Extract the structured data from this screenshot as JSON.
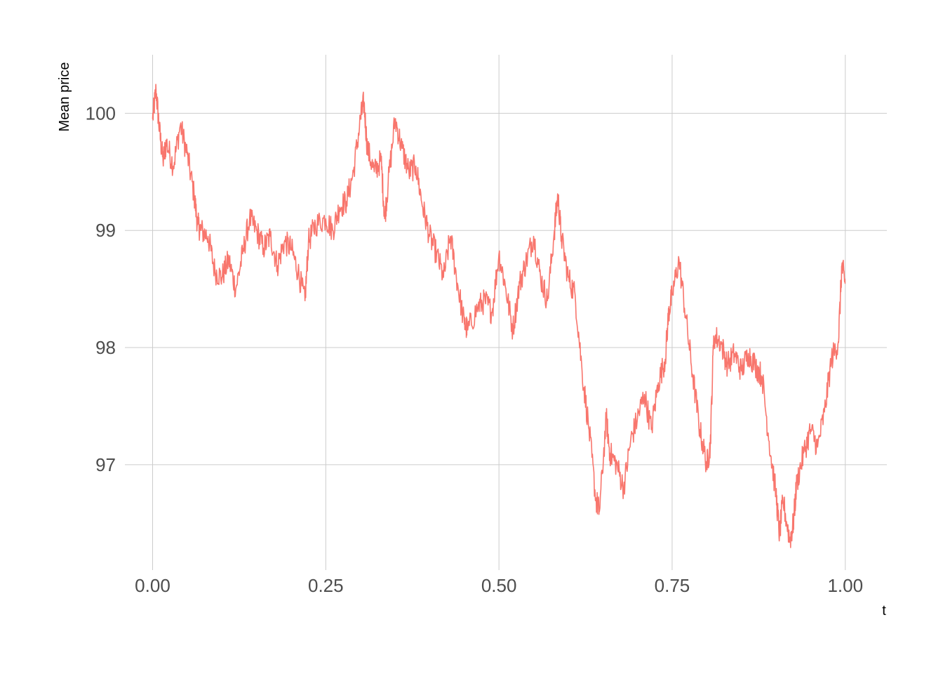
{
  "chart_data": {
    "type": "line",
    "xlabel": "t",
    "ylabel": "Mean price",
    "xlim": [
      -0.04,
      1.06
    ],
    "ylim": [
      96.1,
      100.5
    ],
    "x_ticks": [
      0.0,
      0.25,
      0.5,
      0.75,
      1.0
    ],
    "x_tick_labels": [
      "0.00",
      "0.25",
      "0.50",
      "0.75",
      "1.00"
    ],
    "y_ticks": [
      97,
      98,
      99,
      100
    ],
    "y_tick_labels": [
      "97",
      "98",
      "99",
      "100"
    ],
    "grid": true,
    "legend": "none",
    "colors": {
      "line": "#f8766d",
      "grid": "#cccccc",
      "tick_text": "#4d4d4d"
    },
    "series": [
      {
        "x": [
          0.0,
          0.005,
          0.01,
          0.015,
          0.02,
          0.03,
          0.04,
          0.05,
          0.06,
          0.065,
          0.07,
          0.08,
          0.09,
          0.1,
          0.11,
          0.12,
          0.13,
          0.14,
          0.15,
          0.16,
          0.17,
          0.18,
          0.19,
          0.2,
          0.21,
          0.22,
          0.225,
          0.235,
          0.25,
          0.26,
          0.27,
          0.28,
          0.29,
          0.3,
          0.305,
          0.31,
          0.32,
          0.33,
          0.335,
          0.34,
          0.35,
          0.36,
          0.37,
          0.38,
          0.39,
          0.4,
          0.41,
          0.42,
          0.43,
          0.44,
          0.45,
          0.455,
          0.47,
          0.48,
          0.49,
          0.5,
          0.51,
          0.52,
          0.53,
          0.54,
          0.55,
          0.56,
          0.57,
          0.58,
          0.585,
          0.59,
          0.6,
          0.61,
          0.62,
          0.63,
          0.64,
          0.645,
          0.655,
          0.66,
          0.67,
          0.68,
          0.69,
          0.7,
          0.71,
          0.72,
          0.73,
          0.74,
          0.745,
          0.75,
          0.76,
          0.77,
          0.78,
          0.79,
          0.8,
          0.805,
          0.81,
          0.82,
          0.83,
          0.84,
          0.85,
          0.86,
          0.87,
          0.88,
          0.89,
          0.9,
          0.905,
          0.91,
          0.92,
          0.925,
          0.93,
          0.94,
          0.95,
          0.96,
          0.97,
          0.98,
          0.99,
          0.995,
          1.0
        ],
        "y": [
          99.95,
          100.2,
          99.85,
          99.6,
          99.75,
          99.55,
          99.9,
          99.65,
          99.3,
          99.05,
          99.0,
          98.95,
          98.65,
          98.6,
          98.75,
          98.5,
          98.8,
          99.1,
          99.0,
          98.85,
          98.95,
          98.7,
          98.9,
          98.85,
          98.65,
          98.4,
          98.9,
          99.05,
          99.1,
          99.0,
          99.2,
          99.25,
          99.5,
          99.95,
          100.1,
          99.7,
          99.5,
          99.6,
          99.1,
          99.4,
          99.95,
          99.7,
          99.5,
          99.55,
          99.2,
          98.95,
          98.8,
          98.6,
          98.95,
          98.55,
          98.2,
          98.15,
          98.35,
          98.4,
          98.3,
          98.8,
          98.5,
          98.15,
          98.55,
          98.75,
          98.95,
          98.6,
          98.4,
          99.0,
          99.3,
          98.95,
          98.6,
          98.45,
          97.8,
          97.3,
          96.7,
          96.6,
          97.4,
          97.1,
          97.0,
          96.8,
          97.2,
          97.4,
          97.6,
          97.3,
          97.7,
          97.9,
          98.3,
          98.45,
          98.75,
          98.25,
          97.75,
          97.3,
          97.0,
          97.15,
          98.1,
          98.05,
          97.85,
          97.95,
          97.8,
          97.95,
          97.85,
          97.75,
          97.2,
          96.75,
          96.4,
          96.7,
          96.35,
          96.5,
          96.85,
          97.1,
          97.3,
          97.15,
          97.45,
          97.9,
          98.05,
          98.7,
          98.55
        ]
      }
    ]
  }
}
